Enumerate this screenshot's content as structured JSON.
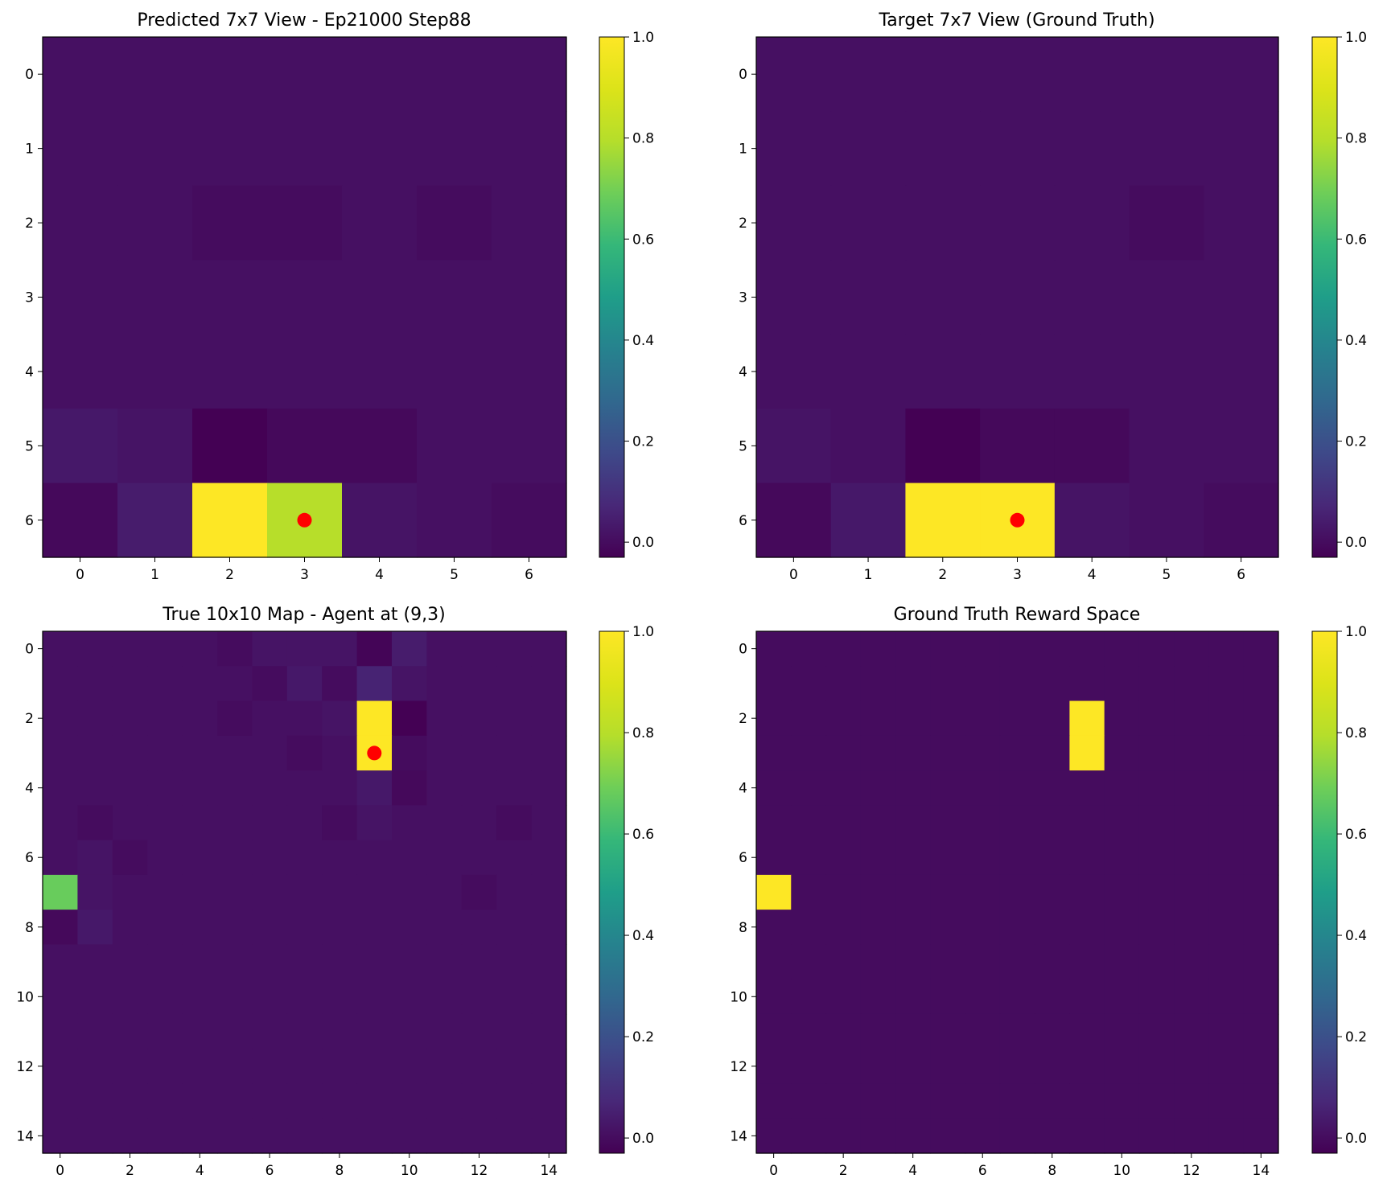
{
  "chart_data": [
    {
      "type": "heatmap",
      "title": "Predicted 7x7 View - Ep21000 Step88",
      "rows": 7,
      "cols": 7,
      "x_ticks": [
        0,
        1,
        2,
        3,
        4,
        5,
        6
      ],
      "y_ticks": [
        0,
        1,
        2,
        3,
        4,
        5,
        6
      ],
      "values": [
        [
          0.01,
          0.01,
          0.01,
          0.01,
          0.01,
          0.01,
          0.01
        ],
        [
          0.01,
          0.01,
          0.01,
          0.01,
          0.01,
          0.01,
          0.01
        ],
        [
          0.01,
          0.01,
          0.0,
          0.0,
          0.01,
          0.0,
          0.01
        ],
        [
          0.01,
          0.01,
          0.01,
          0.01,
          0.01,
          0.01,
          0.01
        ],
        [
          0.01,
          0.01,
          0.01,
          0.01,
          0.01,
          0.01,
          0.01
        ],
        [
          0.03,
          0.02,
          -0.03,
          -0.01,
          -0.01,
          0.01,
          0.01
        ],
        [
          -0.01,
          0.04,
          1.0,
          0.8,
          0.02,
          0.01,
          0.0
        ]
      ],
      "colorbar": {
        "min": -0.03,
        "max": 1.0,
        "ticks": [
          0.0,
          0.2,
          0.4,
          0.6,
          0.8,
          1.0
        ],
        "tick_labels": [
          "0.0",
          "0.2",
          "0.4",
          "0.6",
          "0.8",
          "1.0"
        ]
      },
      "marker": {
        "x": 3,
        "y": 6,
        "color": "#ff0000"
      }
    },
    {
      "type": "heatmap",
      "title": "Target 7x7 View (Ground Truth)",
      "rows": 7,
      "cols": 7,
      "x_ticks": [
        0,
        1,
        2,
        3,
        4,
        5,
        6
      ],
      "y_ticks": [
        0,
        1,
        2,
        3,
        4,
        5,
        6
      ],
      "values": [
        [
          0.01,
          0.01,
          0.01,
          0.01,
          0.01,
          0.01,
          0.01
        ],
        [
          0.01,
          0.01,
          0.01,
          0.01,
          0.01,
          0.01,
          0.01
        ],
        [
          0.01,
          0.01,
          0.01,
          0.01,
          0.01,
          0.0,
          0.01
        ],
        [
          0.01,
          0.01,
          0.01,
          0.01,
          0.01,
          0.01,
          0.01
        ],
        [
          0.01,
          0.01,
          0.01,
          0.01,
          0.01,
          0.01,
          0.01
        ],
        [
          0.02,
          0.01,
          -0.03,
          -0.01,
          -0.01,
          0.01,
          0.01
        ],
        [
          -0.01,
          0.03,
          1.0,
          1.0,
          0.02,
          0.01,
          0.0
        ]
      ],
      "colorbar": {
        "min": -0.03,
        "max": 1.0,
        "ticks": [
          0.0,
          0.2,
          0.4,
          0.6,
          0.8,
          1.0
        ],
        "tick_labels": [
          "0.0",
          "0.2",
          "0.4",
          "0.6",
          "0.8",
          "1.0"
        ]
      },
      "marker": {
        "x": 3,
        "y": 6,
        "color": "#ff0000"
      }
    },
    {
      "type": "heatmap",
      "title": "True 10x10 Map - Agent at (9,3)",
      "rows": 15,
      "cols": 15,
      "x_ticks": [
        0,
        2,
        4,
        6,
        8,
        10,
        12,
        14
      ],
      "y_ticks": [
        0,
        2,
        4,
        6,
        8,
        10,
        12,
        14
      ],
      "values": [
        [
          0.01,
          0.01,
          0.01,
          0.01,
          0.01,
          0.0,
          0.02,
          0.02,
          0.02,
          -0.02,
          0.04,
          0.01,
          0.01,
          0.01,
          0.01
        ],
        [
          0.01,
          0.01,
          0.01,
          0.01,
          0.01,
          0.01,
          0.0,
          0.03,
          0.0,
          0.06,
          0.02,
          0.01,
          0.01,
          0.01,
          0.01
        ],
        [
          0.01,
          0.01,
          0.01,
          0.01,
          0.01,
          0.0,
          0.01,
          0.01,
          0.02,
          1.0,
          -0.03,
          0.01,
          0.01,
          0.01,
          0.01
        ],
        [
          0.01,
          0.01,
          0.01,
          0.01,
          0.01,
          0.01,
          0.01,
          0.0,
          0.01,
          1.0,
          0.0,
          0.01,
          0.01,
          0.01,
          0.01
        ],
        [
          0.01,
          0.01,
          0.01,
          0.01,
          0.01,
          0.01,
          0.01,
          0.01,
          0.01,
          0.03,
          -0.01,
          0.01,
          0.01,
          0.01,
          0.01
        ],
        [
          0.01,
          0.0,
          0.01,
          0.01,
          0.01,
          0.01,
          0.01,
          0.01,
          0.0,
          0.02,
          0.01,
          0.01,
          0.01,
          0.0,
          0.01
        ],
        [
          0.01,
          0.02,
          0.0,
          0.01,
          0.01,
          0.01,
          0.01,
          0.01,
          0.01,
          0.01,
          0.01,
          0.01,
          0.01,
          0.01,
          0.01
        ],
        [
          0.68,
          0.02,
          0.01,
          0.01,
          0.01,
          0.01,
          0.01,
          0.01,
          0.01,
          0.01,
          0.01,
          0.01,
          0.0,
          0.01,
          0.01
        ],
        [
          -0.01,
          0.03,
          0.01,
          0.01,
          0.01,
          0.01,
          0.01,
          0.01,
          0.01,
          0.01,
          0.01,
          0.01,
          0.01,
          0.01,
          0.01
        ],
        [
          0.01,
          0.01,
          0.01,
          0.01,
          0.01,
          0.01,
          0.01,
          0.01,
          0.01,
          0.01,
          0.01,
          0.01,
          0.01,
          0.01,
          0.01
        ],
        [
          0.01,
          0.01,
          0.01,
          0.01,
          0.01,
          0.01,
          0.01,
          0.01,
          0.01,
          0.01,
          0.01,
          0.01,
          0.01,
          0.01,
          0.01
        ],
        [
          0.01,
          0.01,
          0.01,
          0.01,
          0.01,
          0.01,
          0.01,
          0.01,
          0.01,
          0.01,
          0.01,
          0.01,
          0.01,
          0.01,
          0.01
        ],
        [
          0.01,
          0.01,
          0.01,
          0.01,
          0.01,
          0.01,
          0.01,
          0.01,
          0.01,
          0.01,
          0.01,
          0.01,
          0.01,
          0.01,
          0.01
        ],
        [
          0.01,
          0.01,
          0.01,
          0.01,
          0.01,
          0.01,
          0.01,
          0.01,
          0.01,
          0.01,
          0.01,
          0.01,
          0.01,
          0.01,
          0.01
        ],
        [
          0.01,
          0.01,
          0.01,
          0.01,
          0.01,
          0.01,
          0.01,
          0.01,
          0.01,
          0.01,
          0.01,
          0.01,
          0.01,
          0.01,
          0.01
        ]
      ],
      "colorbar": {
        "min": -0.03,
        "max": 1.0,
        "ticks": [
          0.0,
          0.2,
          0.4,
          0.6,
          0.8,
          1.0
        ],
        "tick_labels": [
          "0.0",
          "0.2",
          "0.4",
          "0.6",
          "0.8",
          "1.0"
        ]
      },
      "marker": {
        "x": 9,
        "y": 3,
        "color": "#ff0000"
      }
    },
    {
      "type": "heatmap",
      "title": "Ground Truth Reward Space",
      "rows": 15,
      "cols": 15,
      "x_ticks": [
        0,
        2,
        4,
        6,
        8,
        10,
        12,
        14
      ],
      "y_ticks": [
        0,
        2,
        4,
        6,
        8,
        10,
        12,
        14
      ],
      "values": [
        [
          0,
          0,
          0,
          0,
          0,
          0,
          0,
          0,
          0,
          0,
          0,
          0,
          0,
          0,
          0
        ],
        [
          0,
          0,
          0,
          0,
          0,
          0,
          0,
          0,
          0,
          0,
          0,
          0,
          0,
          0,
          0
        ],
        [
          0,
          0,
          0,
          0,
          0,
          0,
          0,
          0,
          0,
          1,
          0,
          0,
          0,
          0,
          0
        ],
        [
          0,
          0,
          0,
          0,
          0,
          0,
          0,
          0,
          0,
          1,
          0,
          0,
          0,
          0,
          0
        ],
        [
          0,
          0,
          0,
          0,
          0,
          0,
          0,
          0,
          0,
          0,
          0,
          0,
          0,
          0,
          0
        ],
        [
          0,
          0,
          0,
          0,
          0,
          0,
          0,
          0,
          0,
          0,
          0,
          0,
          0,
          0,
          0
        ],
        [
          0,
          0,
          0,
          0,
          0,
          0,
          0,
          0,
          0,
          0,
          0,
          0,
          0,
          0,
          0
        ],
        [
          1,
          0,
          0,
          0,
          0,
          0,
          0,
          0,
          0,
          0,
          0,
          0,
          0,
          0,
          0
        ],
        [
          0,
          0,
          0,
          0,
          0,
          0,
          0,
          0,
          0,
          0,
          0,
          0,
          0,
          0,
          0
        ],
        [
          0,
          0,
          0,
          0,
          0,
          0,
          0,
          0,
          0,
          0,
          0,
          0,
          0,
          0,
          0
        ],
        [
          0,
          0,
          0,
          0,
          0,
          0,
          0,
          0,
          0,
          0,
          0,
          0,
          0,
          0,
          0
        ],
        [
          0,
          0,
          0,
          0,
          0,
          0,
          0,
          0,
          0,
          0,
          0,
          0,
          0,
          0,
          0
        ],
        [
          0,
          0,
          0,
          0,
          0,
          0,
          0,
          0,
          0,
          0,
          0,
          0,
          0,
          0,
          0
        ],
        [
          0,
          0,
          0,
          0,
          0,
          0,
          0,
          0,
          0,
          0,
          0,
          0,
          0,
          0,
          0
        ],
        [
          0,
          0,
          0,
          0,
          0,
          0,
          0,
          0,
          0,
          0,
          0,
          0,
          0,
          0,
          0
        ]
      ],
      "colorbar": {
        "min": -0.03,
        "max": 1.0,
        "ticks": [
          0.0,
          0.2,
          0.4,
          0.6,
          0.8,
          1.0
        ],
        "tick_labels": [
          "0.0",
          "0.2",
          "0.4",
          "0.6",
          "0.8",
          "1.0"
        ]
      }
    }
  ]
}
